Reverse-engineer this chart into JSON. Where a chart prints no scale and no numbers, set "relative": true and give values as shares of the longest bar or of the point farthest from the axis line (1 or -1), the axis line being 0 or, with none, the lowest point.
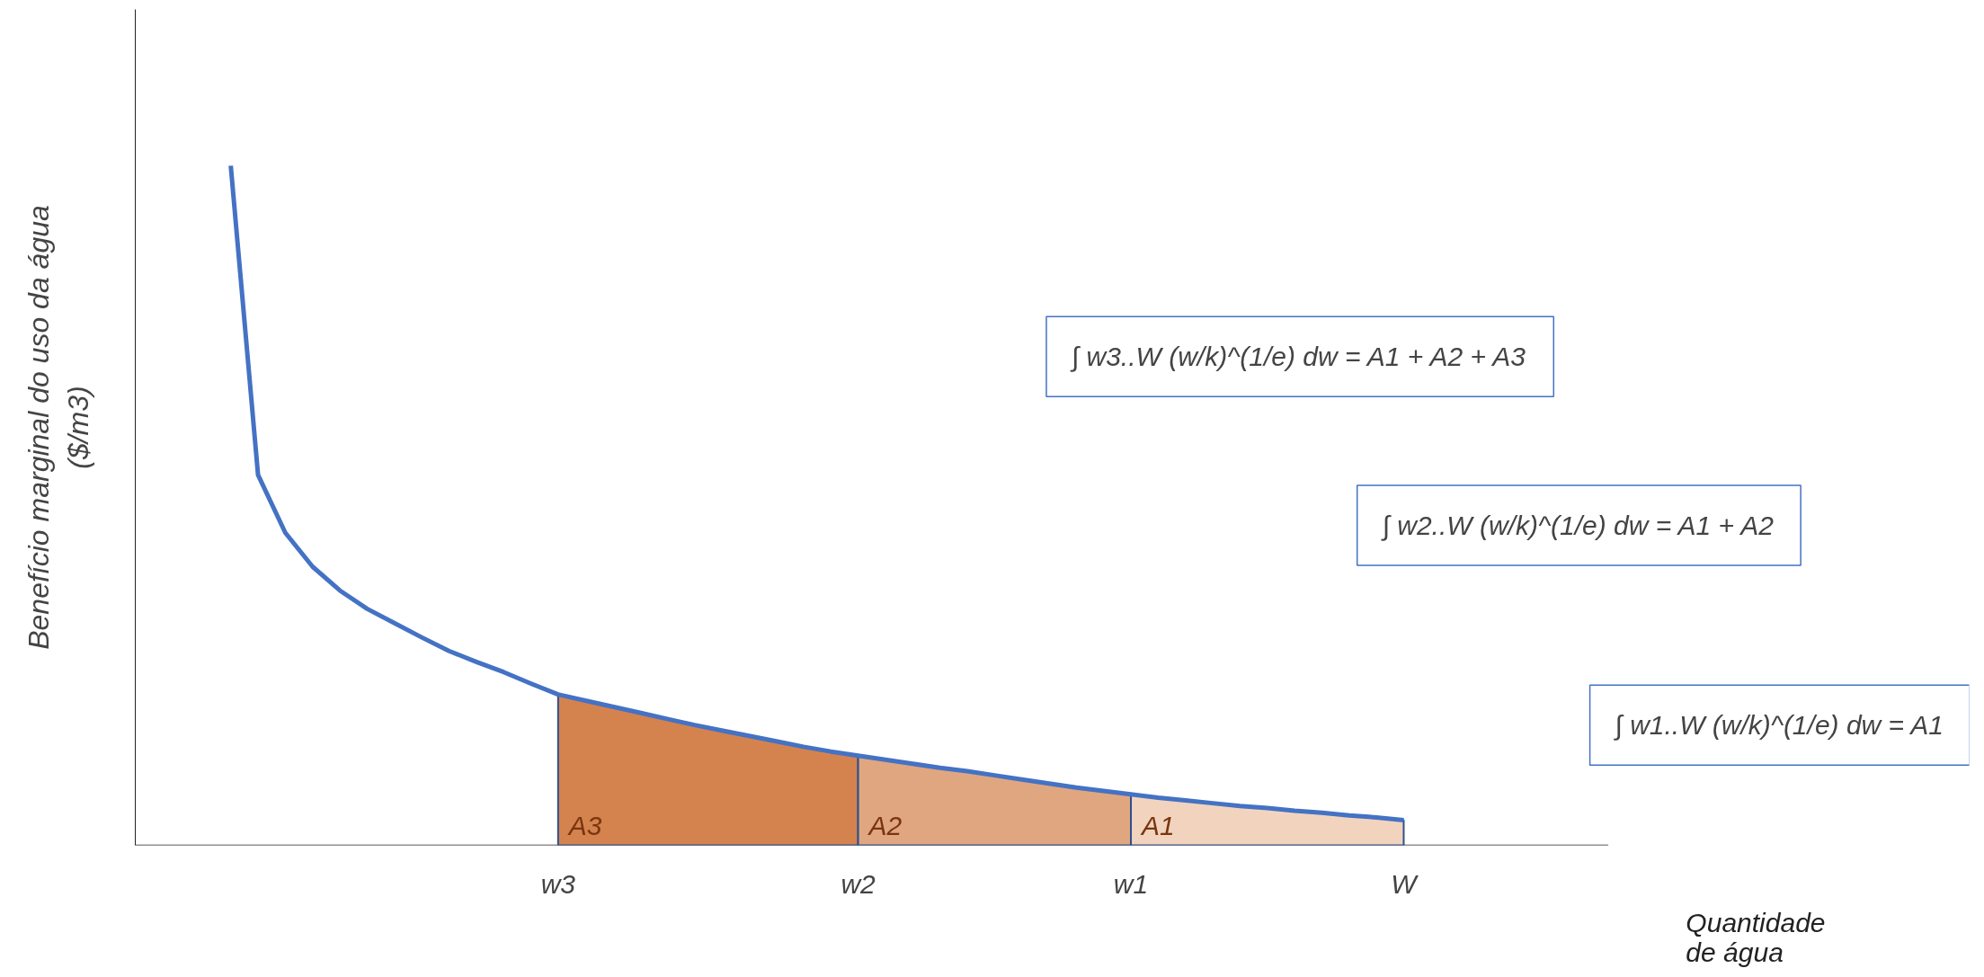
{
  "chart_data": {
    "type": "line",
    "relative": true,
    "xlabel": "Quantidade de água",
    "ylabel": "Benefício marginal do uso da água ($/m3)",
    "categories": [
      null,
      null,
      null,
      null,
      null,
      null,
      null,
      null,
      null,
      null,
      null,
      null,
      null,
      null,
      null,
      "w3",
      null,
      null,
      null,
      null,
      null,
      null,
      null,
      null,
      null,
      null,
      "w2",
      null,
      null,
      null,
      null,
      null,
      null,
      null,
      null,
      null,
      "w1",
      null,
      null,
      null,
      null,
      null,
      null,
      null,
      null,
      null,
      "W",
      null,
      null,
      null,
      null,
      null,
      null,
      null
    ],
    "series": [
      {
        "type": "area",
        "name": "A3",
        "color": "#d4834e",
        "values": [
          null,
          null,
          null,
          null,
          null,
          null,
          null,
          null,
          null,
          null,
          null,
          null,
          null,
          null,
          null,
          0.222,
          0.213,
          0.204,
          0.195,
          0.186,
          0.177,
          0.169,
          0.161,
          0.153,
          0.145,
          0.138,
          0.132,
          null,
          null,
          null,
          null,
          null,
          null,
          null,
          null,
          null,
          null,
          null,
          null,
          null,
          null,
          null,
          null,
          null,
          null,
          null,
          null,
          null,
          null,
          null,
          null,
          null,
          null,
          null
        ]
      },
      {
        "type": "area",
        "name": "A2",
        "color": "#e0a680",
        "values": [
          null,
          null,
          null,
          null,
          null,
          null,
          null,
          null,
          null,
          null,
          null,
          null,
          null,
          null,
          null,
          null,
          null,
          null,
          null,
          null,
          null,
          null,
          null,
          null,
          null,
          null,
          0.132,
          0.126,
          0.12,
          0.114,
          0.109,
          0.103,
          0.097,
          0.091,
          0.085,
          0.08,
          0.075,
          null,
          null,
          null,
          null,
          null,
          null,
          null,
          null,
          null,
          null,
          null,
          null,
          null,
          null,
          null,
          null,
          null
        ]
      },
      {
        "type": "area",
        "name": "A1",
        "color": "#f2d4be",
        "values": [
          null,
          null,
          null,
          null,
          null,
          null,
          null,
          null,
          null,
          null,
          null,
          null,
          null,
          null,
          null,
          null,
          null,
          null,
          null,
          null,
          null,
          null,
          null,
          null,
          null,
          null,
          null,
          null,
          null,
          null,
          null,
          null,
          null,
          null,
          null,
          null,
          0.075,
          0.07,
          0.066,
          0.062,
          0.058,
          0.055,
          0.051,
          0.048,
          0.044,
          0.041,
          0.037,
          null,
          null,
          null,
          null,
          null,
          null,
          null
        ]
      },
      {
        "color": "#4472c4",
        "values": [
          null,
          null,
          null,
          1.0,
          0.545,
          0.46,
          0.41,
          0.375,
          0.348,
          0.327,
          0.306,
          0.286,
          0.27,
          0.255,
          0.238,
          0.222,
          0.213,
          0.204,
          0.195,
          0.186,
          0.177,
          0.169,
          0.161,
          0.153,
          0.145,
          0.138,
          0.132,
          0.126,
          0.12,
          0.114,
          0.109,
          0.103,
          0.097,
          0.091,
          0.085,
          0.08,
          0.075,
          0.07,
          0.066,
          0.062,
          0.058,
          0.055,
          0.051,
          0.048,
          0.044,
          0.041,
          0.037,
          null,
          null,
          null,
          null,
          null,
          null,
          null
        ]
      }
    ],
    "annotations": [
      "∫ w3..W (w/k)^(1/e) dw = A1 + A2 + A3",
      "∫ w2..W (w/k)^(1/e) dw = A1 + A2",
      "∫ w1..W (w/k)^(1/e) dw = A1"
    ]
  }
}
